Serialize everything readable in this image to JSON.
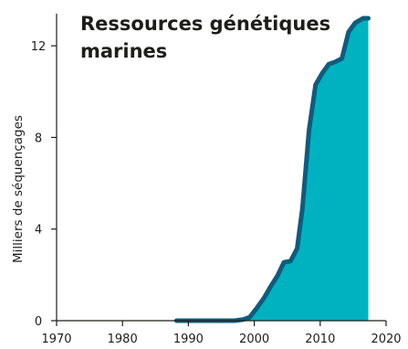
{
  "chart_data": {
    "type": "area",
    "title_lines": [
      "Ressources génétiques",
      "marines"
    ],
    "xlabel": "",
    "ylabel": "Milliers de séquençages",
    "xlim": [
      1970,
      2020
    ],
    "ylim": [
      0,
      14
    ],
    "x_ticks": [
      1970,
      1980,
      1990,
      2000,
      2010,
      2020
    ],
    "y_ticks": [
      0,
      4,
      8,
      12
    ],
    "grid": false,
    "colors": {
      "fill": "#00b2bf",
      "line": "#0f5c7d",
      "axis": "#1d1d1b",
      "text": "#1d1d1b"
    },
    "series": [
      {
        "x": [
          1988.2,
          1990,
          1993,
          1995,
          1997,
          1998.3,
          1999.3,
          2000.5,
          2001.5,
          2002.5,
          2003.5,
          2004.5,
          2005.5,
          2006.5,
          2007.3,
          2008.3,
          2009.3,
          2010.3,
          2011.3,
          2012.3,
          2013.3,
          2014.3,
          2015.3,
          2016.5,
          2017.3
        ],
        "y": [
          0,
          0,
          0,
          0,
          0,
          0.05,
          0.15,
          0.6,
          1.0,
          1.5,
          1.95,
          2.55,
          2.6,
          3.15,
          4.9,
          8.3,
          10.3,
          10.8,
          11.2,
          11.3,
          11.45,
          12.6,
          13.0,
          13.2,
          13.2
        ]
      }
    ]
  }
}
